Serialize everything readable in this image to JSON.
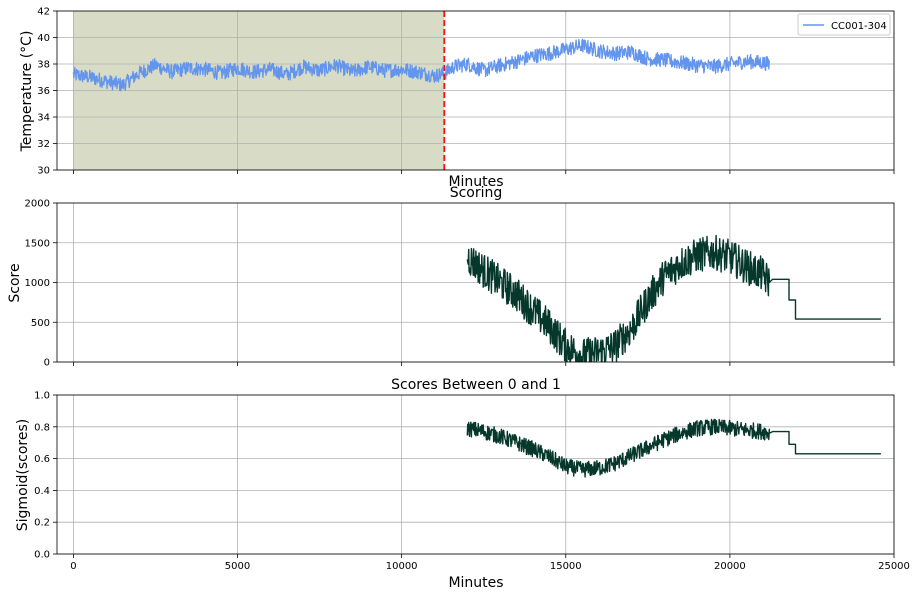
{
  "chart_data": [
    {
      "type": "line",
      "title": "",
      "xlabel": "Minutes",
      "ylabel": "Temperature (°C)",
      "xlim": [
        -500,
        25000
      ],
      "ylim": [
        30,
        42
      ],
      "yticks": [
        "30",
        "32",
        "34",
        "36",
        "38",
        "40",
        "42"
      ],
      "show_xticklabels": false,
      "grid": true,
      "legend": "top-right",
      "shaded_region": {
        "x_start": 0,
        "x_end": 11300,
        "color": "#d8dcc6"
      },
      "vline": {
        "x": 11300,
        "color": "#ee1111",
        "style": "dashed"
      },
      "series": [
        {
          "name": "CC001-304",
          "color": "#6495ed",
          "x": [
            0,
            500,
            1000,
            1500,
            2000,
            2500,
            3000,
            3500,
            4000,
            4500,
            5000,
            5500,
            6000,
            6500,
            7000,
            7500,
            8000,
            8500,
            9000,
            9500,
            10000,
            10500,
            11000,
            11300,
            11600,
            12000,
            12500,
            13000,
            13500,
            14000,
            14500,
            15000,
            15500,
            16000,
            16500,
            17000,
            17500,
            18000,
            18500,
            19000,
            19500,
            20000,
            20500,
            21000,
            21200
          ],
          "values": [
            37.2,
            37.0,
            36.7,
            36.4,
            37.3,
            37.9,
            37.4,
            37.7,
            37.6,
            37.3,
            37.7,
            37.4,
            37.6,
            37.2,
            37.8,
            37.5,
            37.9,
            37.4,
            37.8,
            37.5,
            37.6,
            37.4,
            37.1,
            37.3,
            37.8,
            38.0,
            37.5,
            37.9,
            38.2,
            38.6,
            38.8,
            39.1,
            39.4,
            39.0,
            38.8,
            38.9,
            38.4,
            38.3,
            38.1,
            37.9,
            37.8,
            38.0,
            38.2,
            38.1,
            38.0
          ],
          "noise": 0.55
        }
      ]
    },
    {
      "type": "line",
      "title": "Scoring",
      "xlabel": "",
      "ylabel": "Score",
      "xlim": [
        -500,
        25000
      ],
      "ylim": [
        0,
        2000
      ],
      "yticks": [
        "0",
        "500",
        "1000",
        "1500",
        "2000"
      ],
      "show_xticklabels": false,
      "grid": true,
      "series": [
        {
          "name": "",
          "color": "#05382a",
          "x": [
            12000,
            12500,
            13000,
            13500,
            14000,
            14500,
            15000,
            15500,
            16000,
            16500,
            17000,
            17500,
            18000,
            18500,
            19000,
            19500,
            20000,
            20500,
            21000,
            21200
          ],
          "values": [
            1320,
            1150,
            1000,
            850,
            650,
            450,
            200,
            80,
            120,
            200,
            420,
            780,
            1080,
            1240,
            1340,
            1380,
            1320,
            1200,
            1100,
            1000
          ],
          "noise": 220,
          "steps": [
            [
              21200,
              1000
            ],
            [
              21300,
              1040
            ],
            [
              21800,
              1040
            ],
            [
              21800,
              780
            ],
            [
              22000,
              780
            ],
            [
              22000,
              540
            ],
            [
              24600,
              540
            ]
          ]
        }
      ]
    },
    {
      "type": "line",
      "title": "Scores Between 0 and 1",
      "xlabel": "Minutes",
      "ylabel": "Sigmoid(scores)",
      "xlim": [
        -500,
        25000
      ],
      "ylim": [
        0,
        1.0
      ],
      "yticks": [
        "0.0",
        "0.2",
        "0.4",
        "0.6",
        "0.8",
        "1.0"
      ],
      "xticks": [
        "0",
        "5000",
        "10000",
        "15000",
        "20000",
        "25000"
      ],
      "show_xticklabels": true,
      "grid": true,
      "series": [
        {
          "name": "",
          "color": "#05382a",
          "x": [
            12000,
            12500,
            13000,
            13500,
            14000,
            14500,
            15000,
            15500,
            16000,
            16500,
            17000,
            17500,
            18000,
            18500,
            19000,
            19500,
            20000,
            20500,
            21000,
            21200
          ],
          "values": [
            0.79,
            0.77,
            0.74,
            0.7,
            0.66,
            0.61,
            0.55,
            0.53,
            0.54,
            0.57,
            0.62,
            0.67,
            0.72,
            0.76,
            0.79,
            0.8,
            0.79,
            0.78,
            0.77,
            0.76
          ],
          "noise": 0.05,
          "steps": [
            [
              21200,
              0.76
            ],
            [
              21300,
              0.77
            ],
            [
              21800,
              0.77
            ],
            [
              21800,
              0.69
            ],
            [
              22000,
              0.69
            ],
            [
              22000,
              0.63
            ],
            [
              24600,
              0.63
            ]
          ]
        }
      ]
    }
  ]
}
